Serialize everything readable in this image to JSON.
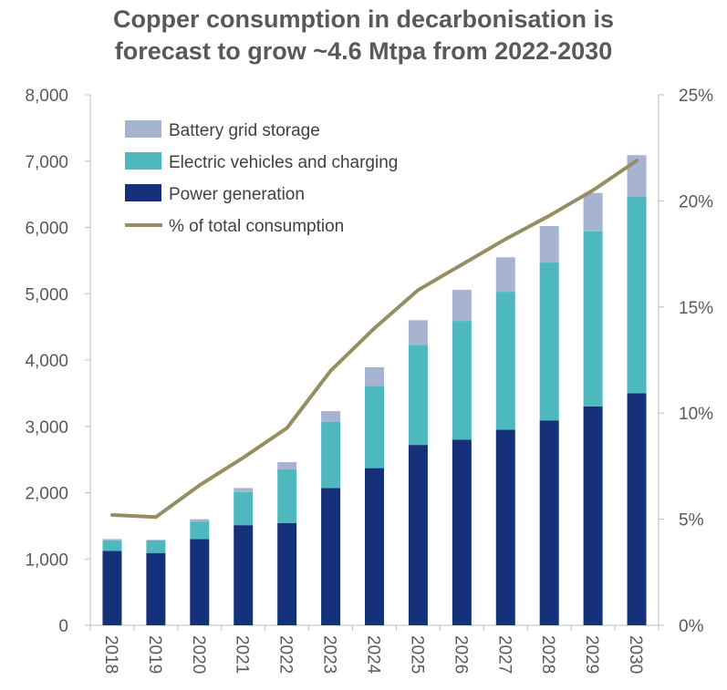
{
  "chart_data": {
    "type": "bar",
    "stacked": true,
    "title_line1": "Copper consumption in decarbonisation is",
    "title_line2": "forecast to grow ~4.6 Mtpa from 2022-2030",
    "categories": [
      "2018",
      "2019",
      "2020",
      "2021",
      "2022",
      "2023",
      "2024",
      "2025",
      "2026",
      "2027",
      "2028",
      "2029",
      "2030"
    ],
    "series": [
      {
        "name": "Power generation",
        "color": "#14317a",
        "values": [
          1120,
          1090,
          1300,
          1510,
          1540,
          2070,
          2370,
          2720,
          2800,
          2950,
          3090,
          3300,
          3500
        ]
      },
      {
        "name": "Electric vehicles and charging",
        "color": "#4fb8be",
        "values": [
          160,
          190,
          260,
          500,
          810,
          1000,
          1240,
          1510,
          1790,
          2080,
          2380,
          2640,
          2960
        ]
      },
      {
        "name": "Battery grid storage",
        "color": "#a6b4d0",
        "values": [
          20,
          10,
          40,
          60,
          110,
          160,
          280,
          370,
          470,
          520,
          550,
          580,
          630
        ]
      }
    ],
    "line": {
      "name": "% of total consumption",
      "color": "#958e62",
      "axis": "right",
      "values": [
        5.2,
        5.1,
        6.6,
        7.9,
        9.3,
        12.0,
        14.0,
        15.8,
        17.0,
        18.2,
        19.3,
        20.5,
        21.9
      ]
    },
    "left_axis": {
      "min": 0,
      "max": 8000,
      "ticks": [
        "0",
        "1,000",
        "2,000",
        "3,000",
        "4,000",
        "5,000",
        "6,000",
        "7,000",
        "8,000"
      ]
    },
    "right_axis": {
      "min": 0,
      "max": 25,
      "ticks": [
        "0%",
        "5%",
        "10%",
        "15%",
        "20%",
        "25%"
      ]
    },
    "legend": [
      "Battery grid storage",
      "Electric vehicles and charging",
      "Power generation",
      "% of total consumption"
    ],
    "legend_position": "top-left"
  }
}
